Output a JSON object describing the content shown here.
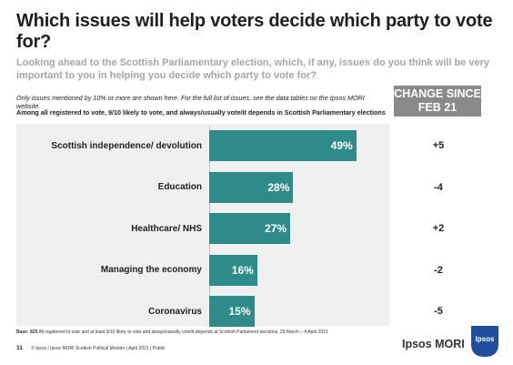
{
  "header": {
    "title": "Which issues will help voters decide which party to vote for?",
    "subtitle": "Looking ahead to the Scottish Parliamentary election, which, if any, issues do you think will be very important to you in helping you decide which party to vote for?",
    "note": "Only issues mentioned by 10% or more are shown here. For the full list of issues, see the data tables on the Ipsos MORI website.",
    "sample": "Among all registered to vote, 9/10 likely to vote, and always/usually vote/it depends in Scottish Parliamentary elections"
  },
  "change_header": {
    "line1": "CHANGE SINCE",
    "line2": "FEB 21"
  },
  "chart_data": {
    "type": "bar",
    "orientation": "horizontal",
    "categories": [
      "Scottish independence/ devolution",
      "Education",
      "Healthcare/ NHS",
      "Managing the economy",
      "Coronavirus"
    ],
    "values": [
      49,
      28,
      27,
      16,
      15
    ],
    "value_labels": [
      "49%",
      "28%",
      "27%",
      "16%",
      "15%"
    ],
    "change_since_feb21": [
      "+5",
      "-4",
      "+2",
      "-2",
      "-5"
    ],
    "bar_color": "#2f8a8a",
    "xlim": [
      0,
      100
    ],
    "grid": false
  },
  "footer": {
    "base_prefix": "Base: 825",
    "base_text": "All registered to vote and at least 9/10 likely to vote and always/usually vote/it depends at Scottish Parliament elections, 29 March – 4 April 2021",
    "page_number": "11",
    "copyright": "© Ipsos | Ipsos MORI Scottish Political Monitor | April 2021 | Public",
    "brand": "Ipsos MORI",
    "logo_text": "Ipsos"
  }
}
